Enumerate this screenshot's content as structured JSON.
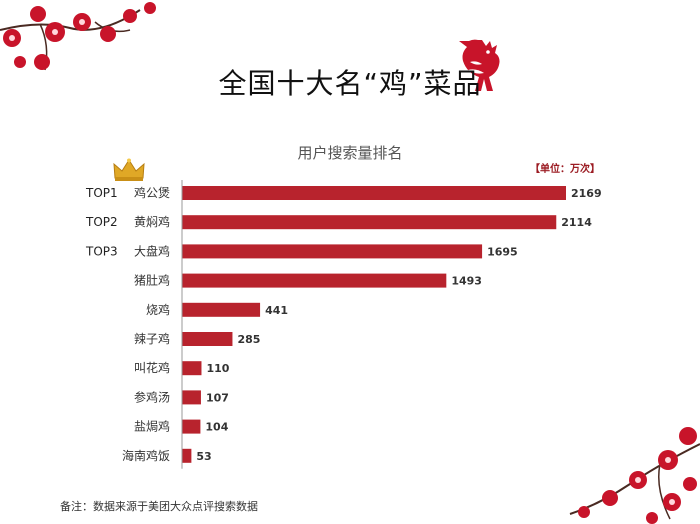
{
  "page": {
    "title": "全国十大名“鸡”菜品",
    "footnote": "备注：数据来源于美团大众点评搜索数据"
  },
  "chart_data": {
    "type": "bar",
    "orientation": "horizontal",
    "title": "用户搜索量排名",
    "unit_note": "【单位：万次】",
    "rank_labels": [
      "TOP1",
      "TOP2",
      "TOP3",
      "",
      "",
      "",
      "",
      "",
      "",
      ""
    ],
    "categories": [
      "鸡公煲",
      "黄焖鸡",
      "大盘鸡",
      "猪肚鸡",
      "烧鸡",
      "辣子鸡",
      "叫花鸡",
      "参鸡汤",
      "盐焗鸡",
      "海南鸡饭"
    ],
    "values": [
      2169,
      2114,
      1695,
      1493,
      441,
      285,
      110,
      107,
      104,
      53
    ],
    "xlim": [
      0,
      2169
    ],
    "grid": false,
    "legend": "none",
    "bar_color": "#b8232d"
  },
  "icons": [
    "crown-icon",
    "rooster-icon",
    "plum-blossom-icon"
  ]
}
